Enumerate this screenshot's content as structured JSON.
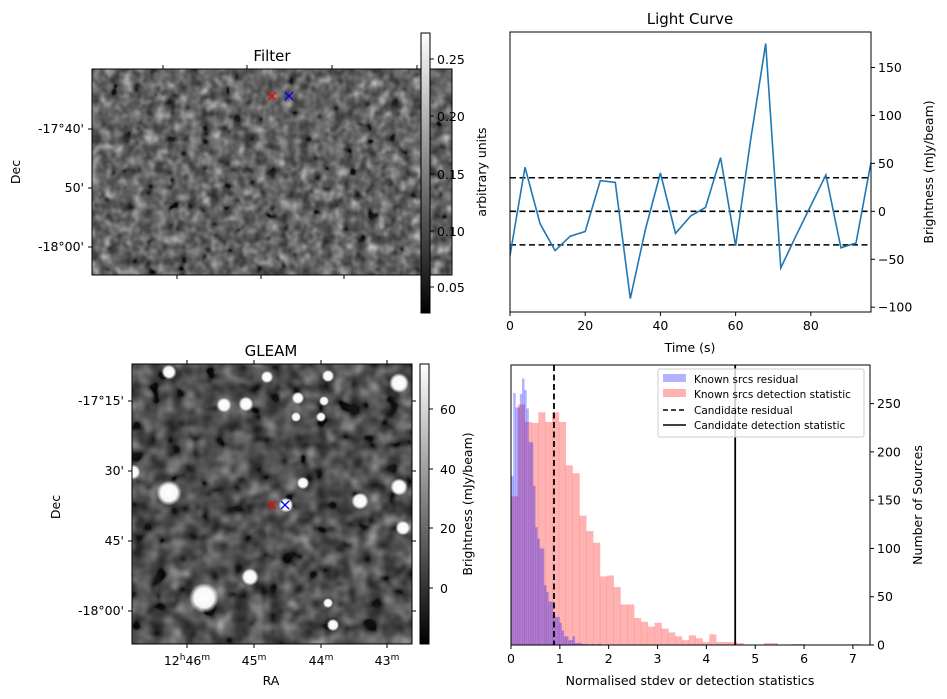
{
  "figure": {
    "panels": [
      "Filter",
      "Light Curve",
      "GLEAM",
      "Histogram"
    ]
  },
  "chart_data": [
    {
      "type": "heatmap",
      "title": "Filter",
      "xlabel": "",
      "ylabel": "Dec",
      "yticks": [
        "-17°40'",
        "50'",
        "-18°00'"
      ],
      "xticks": [],
      "colormap": "gray",
      "colorbar": {
        "label": "arbitrary units",
        "ticks": [
          "0.05",
          "0.10",
          "0.15",
          "0.20",
          "0.25"
        ],
        "range": [
          0.03,
          0.275
        ]
      },
      "markers": [
        {
          "name": "candidate-red",
          "symbol": "x",
          "color": "#ff0000"
        },
        {
          "name": "candidate-blue",
          "symbol": "x",
          "color": "#0000ff"
        }
      ]
    },
    {
      "type": "line",
      "title": "Light Curve",
      "xlabel": "Time (s)",
      "ylabel": "Brightness (mJy/beam)",
      "xlim": [
        0,
        96
      ],
      "ylim": [
        -105,
        187
      ],
      "xticks": [
        0,
        20,
        40,
        60,
        80
      ],
      "yticks": [
        -100,
        -50,
        0,
        50,
        100,
        150
      ],
      "x": [
        0,
        4,
        8,
        12,
        16,
        20,
        24,
        28,
        32,
        36,
        40,
        44,
        48,
        52,
        56,
        60,
        64,
        68,
        72,
        76,
        80,
        84,
        88,
        92,
        96
      ],
      "series": [
        {
          "name": "light-curve",
          "color": "#1f77b4",
          "values": [
            -46,
            46,
            -13,
            -41,
            -26,
            -21,
            32,
            30,
            -91,
            -19,
            40,
            -23,
            -5,
            4,
            56,
            -36,
            75,
            175,
            -59,
            -26,
            6,
            38,
            -38,
            -33,
            51
          ]
        }
      ],
      "hlines": [
        {
          "y": 35,
          "style": "dashed",
          "color": "#000000"
        },
        {
          "y": 0,
          "style": "dashed",
          "color": "#000000"
        },
        {
          "y": -35,
          "style": "dashed",
          "color": "#000000"
        }
      ]
    },
    {
      "type": "heatmap",
      "title": "GLEAM",
      "xlabel": "RA",
      "ylabel": "Dec",
      "xticks": [
        "12h46m",
        "45m",
        "44m",
        "43m"
      ],
      "yticks": [
        "-17°15'",
        "30'",
        "45'",
        "-18°00'"
      ],
      "colormap": "gray",
      "colorbar": {
        "label": "Brightness (mJy/beam)",
        "ticks": [
          "0",
          "20",
          "40",
          "60"
        ],
        "range": [
          -19,
          75
        ]
      },
      "markers": [
        {
          "name": "candidate-red",
          "symbol": "x",
          "color": "#ff0000"
        },
        {
          "name": "candidate-blue",
          "symbol": "x",
          "color": "#0000ff"
        }
      ]
    },
    {
      "type": "bar",
      "subtype": "histogram",
      "title": "",
      "xlabel": "Normalised stdev or detection statistics",
      "ylabel": "Number of Sources",
      "xlim": [
        0,
        7.35
      ],
      "ylim": [
        0,
        290
      ],
      "xticks": [
        0,
        1,
        2,
        3,
        4,
        5,
        6,
        7
      ],
      "yticks": [
        0,
        50,
        100,
        150,
        200,
        250
      ],
      "legend_position": "top-right",
      "series": [
        {
          "name": "Known srcs residual",
          "color": "#0000ff",
          "alpha": 0.3,
          "bin_width": 0.045,
          "bin_start": 0.0,
          "counts": [
            175,
            261,
            246,
            246,
            260,
            276,
            264,
            245,
            210,
            210,
            165,
            122,
            110,
            100,
            100,
            62,
            55,
            45,
            45,
            31,
            29,
            29,
            23,
            15,
            9,
            9,
            5,
            5,
            9,
            2,
            2,
            2,
            1,
            1,
            1,
            0,
            1,
            1,
            0,
            1,
            1
          ]
        },
        {
          "name": "Known srcs detection statistic",
          "color": "#ff0000",
          "alpha": 0.3,
          "bin_width": 0.14,
          "bin_start": 0.0,
          "counts": [
            154,
            249,
            231,
            230,
            241,
            231,
            241,
            231,
            186,
            178,
            134,
            118,
            106,
            71,
            72,
            60,
            42,
            42,
            28,
            24,
            19,
            23,
            17,
            13,
            9,
            5,
            10,
            7,
            3,
            11,
            3,
            3,
            3,
            2,
            0,
            0,
            0,
            2,
            2,
            0,
            0,
            1,
            1,
            0,
            0,
            0,
            0,
            0,
            0,
            0,
            1
          ]
        }
      ],
      "vlines": [
        {
          "name": "Candidate residual",
          "x": 0.88,
          "style": "dashed",
          "color": "#000000"
        },
        {
          "name": "Candidate detection statistic",
          "x": 4.59,
          "style": "solid",
          "color": "#000000"
        }
      ]
    }
  ],
  "labels": {
    "filter_title": "Filter",
    "filter_ylabel": "Dec",
    "filter_cbar_label": "arbitrary units",
    "lc_title": "Light Curve",
    "lc_xlabel": "Time (s)",
    "lc_ylabel": "Brightness (mJy/beam)",
    "gleam_title": "GLEAM",
    "gleam_xlabel": "RA",
    "gleam_ylabel": "Dec",
    "gleam_cbar_label": "Brightness (mJy/beam)",
    "hist_xlabel": "Normalised stdev or detection statistics",
    "hist_ylabel": "Number of Sources",
    "legend": [
      "Known srcs residual",
      "Known srcs detection statistic",
      "Candidate residual",
      "Candidate detection statistic"
    ]
  },
  "colors": {
    "line": "#1f77b4",
    "residual": "#0000ff",
    "detection": "#ff0000",
    "marker_red": "#ff0000",
    "marker_blue": "#0000ff"
  }
}
